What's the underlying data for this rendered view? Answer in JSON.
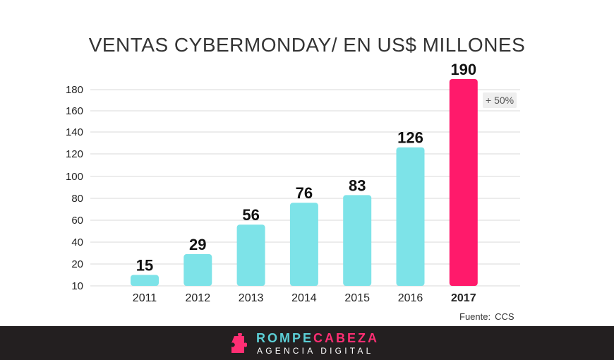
{
  "chart_data": {
    "type": "bar",
    "title": "VENTAS CYBERMONDAY/ EN US$ MILLONES",
    "xlabel": "",
    "ylabel": "",
    "categories": [
      "2011",
      "2012",
      "2013",
      "2014",
      "2015",
      "2016",
      "2017"
    ],
    "values": [
      15,
      29,
      56,
      76,
      83,
      126,
      190
    ],
    "data_labels": [
      "15",
      "29",
      "56",
      "76",
      "83",
      "126",
      "190"
    ],
    "yticks": [
      10,
      20,
      40,
      60,
      80,
      100,
      120,
      140,
      160,
      180
    ],
    "ylim": [
      10,
      190
    ],
    "grid": true,
    "legend": "none",
    "highlight_category": "2017",
    "annotation": "+ 50%",
    "colors": {
      "bar": "#7de3e8",
      "highlight": "#ff1a6b",
      "grid": "#d9d9d9",
      "text": "#111111"
    }
  },
  "source": {
    "label": "Fuente:",
    "value": "CCS"
  },
  "footer": {
    "brand_part1": "ROMPE",
    "brand_part2": "CABEZA",
    "tagline": "AGENCIA DIGITAL",
    "icon": "puzzle-piece-icon",
    "colors": {
      "background": "#231f20",
      "cyan": "#5ccfd6",
      "pink": "#ff2e73"
    }
  }
}
